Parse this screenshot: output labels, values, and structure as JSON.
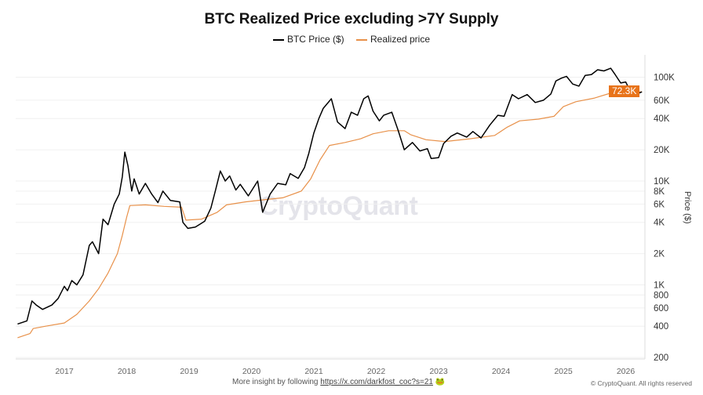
{
  "chart_data": {
    "type": "line",
    "title": "BTC Realized Price excluding >7Y Supply",
    "ylabel": "Price ($)",
    "yscale": "log",
    "ylim": [
      200,
      150000
    ],
    "xlim": [
      2016.2,
      2026.35
    ],
    "grid": true,
    "legend_position": "top",
    "x_ticks": [
      "2017",
      "2018",
      "2019",
      "2020",
      "2021",
      "2022",
      "2023",
      "2024",
      "2025",
      "2026"
    ],
    "y_ticks": [
      {
        "v": 200,
        "label": "200"
      },
      {
        "v": 400,
        "label": "400"
      },
      {
        "v": 600,
        "label": "600"
      },
      {
        "v": 800,
        "label": "800"
      },
      {
        "v": 1000,
        "label": "1K"
      },
      {
        "v": 2000,
        "label": "2K"
      },
      {
        "v": 4000,
        "label": "4K"
      },
      {
        "v": 6000,
        "label": "6K"
      },
      {
        "v": 8000,
        "label": "8K"
      },
      {
        "v": 10000,
        "label": "10K"
      },
      {
        "v": 20000,
        "label": "20K"
      },
      {
        "v": 40000,
        "label": "40K"
      },
      {
        "v": 60000,
        "label": "60K"
      },
      {
        "v": 100000,
        "label": "100K"
      }
    ],
    "last_value_label": "72.3K",
    "series": [
      {
        "name": "BTC Price ($)",
        "color": "#000000",
        "points": [
          [
            2016.25,
            420
          ],
          [
            2016.4,
            450
          ],
          [
            2016.48,
            700
          ],
          [
            2016.55,
            640
          ],
          [
            2016.65,
            580
          ],
          [
            2016.8,
            640
          ],
          [
            2016.9,
            740
          ],
          [
            2017.0,
            970
          ],
          [
            2017.05,
            880
          ],
          [
            2017.12,
            1100
          ],
          [
            2017.2,
            1000
          ],
          [
            2017.3,
            1250
          ],
          [
            2017.4,
            2400
          ],
          [
            2017.45,
            2600
          ],
          [
            2017.55,
            2000
          ],
          [
            2017.62,
            4300
          ],
          [
            2017.7,
            3800
          ],
          [
            2017.8,
            6000
          ],
          [
            2017.88,
            7500
          ],
          [
            2017.93,
            11000
          ],
          [
            2017.97,
            19000
          ],
          [
            2018.02,
            14000
          ],
          [
            2018.08,
            8000
          ],
          [
            2018.12,
            10500
          ],
          [
            2018.2,
            7500
          ],
          [
            2018.3,
            9500
          ],
          [
            2018.4,
            7500
          ],
          [
            2018.5,
            6200
          ],
          [
            2018.58,
            8000
          ],
          [
            2018.7,
            6500
          ],
          [
            2018.85,
            6300
          ],
          [
            2018.9,
            4000
          ],
          [
            2018.98,
            3500
          ],
          [
            2019.1,
            3600
          ],
          [
            2019.25,
            4100
          ],
          [
            2019.35,
            5500
          ],
          [
            2019.42,
            8000
          ],
          [
            2019.5,
            12500
          ],
          [
            2019.58,
            10000
          ],
          [
            2019.65,
            11200
          ],
          [
            2019.75,
            8200
          ],
          [
            2019.82,
            9300
          ],
          [
            2019.95,
            7200
          ],
          [
            2020.1,
            10000
          ],
          [
            2020.18,
            5000
          ],
          [
            2020.3,
            7500
          ],
          [
            2020.42,
            9500
          ],
          [
            2020.55,
            9200
          ],
          [
            2020.62,
            11800
          ],
          [
            2020.75,
            10600
          ],
          [
            2020.85,
            13500
          ],
          [
            2020.92,
            18500
          ],
          [
            2021.0,
            29000
          ],
          [
            2021.08,
            40000
          ],
          [
            2021.15,
            50000
          ],
          [
            2021.28,
            62000
          ],
          [
            2021.38,
            37000
          ],
          [
            2021.5,
            32000
          ],
          [
            2021.6,
            46000
          ],
          [
            2021.7,
            43000
          ],
          [
            2021.8,
            62000
          ],
          [
            2021.87,
            66000
          ],
          [
            2021.95,
            47000
          ],
          [
            2022.05,
            38000
          ],
          [
            2022.12,
            43000
          ],
          [
            2022.25,
            46000
          ],
          [
            2022.35,
            31000
          ],
          [
            2022.45,
            20000
          ],
          [
            2022.58,
            23500
          ],
          [
            2022.7,
            19500
          ],
          [
            2022.82,
            20500
          ],
          [
            2022.88,
            16500
          ],
          [
            2023.0,
            16800
          ],
          [
            2023.08,
            23000
          ],
          [
            2023.2,
            27000
          ],
          [
            2023.3,
            29000
          ],
          [
            2023.45,
            26500
          ],
          [
            2023.55,
            30000
          ],
          [
            2023.68,
            26000
          ],
          [
            2023.82,
            34500
          ],
          [
            2023.95,
            43000
          ],
          [
            2024.05,
            42000
          ],
          [
            2024.18,
            68000
          ],
          [
            2024.28,
            62000
          ],
          [
            2024.42,
            68000
          ],
          [
            2024.55,
            57000
          ],
          [
            2024.68,
            60000
          ],
          [
            2024.8,
            69000
          ],
          [
            2024.88,
            92000
          ],
          [
            2024.97,
            98000
          ],
          [
            2025.05,
            102000
          ],
          [
            2025.15,
            86000
          ],
          [
            2025.25,
            82000
          ],
          [
            2025.35,
            104000
          ],
          [
            2025.45,
            106000
          ],
          [
            2025.55,
            118000
          ],
          [
            2025.65,
            115000
          ],
          [
            2025.76,
            122000
          ],
          [
            2025.83,
            106000
          ],
          [
            2025.92,
            88000
          ],
          [
            2026.0,
            90000
          ],
          [
            2026.06,
            76000
          ],
          [
            2026.1,
            66000
          ],
          [
            2026.18,
            69000
          ],
          [
            2026.26,
            72300
          ]
        ]
      },
      {
        "name": "Realized price",
        "color": "#e8914a",
        "points": [
          [
            2016.25,
            310
          ],
          [
            2016.45,
            340
          ],
          [
            2016.5,
            380
          ],
          [
            2016.7,
            400
          ],
          [
            2017.0,
            430
          ],
          [
            2017.2,
            520
          ],
          [
            2017.4,
            700
          ],
          [
            2017.55,
            920
          ],
          [
            2017.7,
            1300
          ],
          [
            2017.85,
            2000
          ],
          [
            2017.93,
            3000
          ],
          [
            2018.0,
            4500
          ],
          [
            2018.05,
            5800
          ],
          [
            2018.3,
            5900
          ],
          [
            2018.6,
            5700
          ],
          [
            2018.88,
            5600
          ],
          [
            2018.95,
            4200
          ],
          [
            2019.2,
            4300
          ],
          [
            2019.45,
            5000
          ],
          [
            2019.6,
            5900
          ],
          [
            2019.9,
            6300
          ],
          [
            2020.2,
            6600
          ],
          [
            2020.5,
            6900
          ],
          [
            2020.8,
            8000
          ],
          [
            2020.95,
            10500
          ],
          [
            2021.1,
            16000
          ],
          [
            2021.25,
            22000
          ],
          [
            2021.5,
            23500
          ],
          [
            2021.75,
            25500
          ],
          [
            2021.95,
            28500
          ],
          [
            2022.2,
            30500
          ],
          [
            2022.45,
            30500
          ],
          [
            2022.55,
            28000
          ],
          [
            2022.8,
            25000
          ],
          [
            2023.1,
            24000
          ],
          [
            2023.5,
            25500
          ],
          [
            2023.9,
            27500
          ],
          [
            2024.1,
            33000
          ],
          [
            2024.3,
            38000
          ],
          [
            2024.6,
            39500
          ],
          [
            2024.85,
            42000
          ],
          [
            2025.0,
            52000
          ],
          [
            2025.2,
            58000
          ],
          [
            2025.5,
            63000
          ],
          [
            2025.75,
            70000
          ],
          [
            2026.0,
            72500
          ],
          [
            2026.26,
            72300
          ]
        ]
      }
    ]
  },
  "watermark": "CryptoQuant",
  "footer": {
    "text": "More insight by following ",
    "link": "https://x.com/darkfost_coc?s=21",
    "copyright": "© CryptoQuant. All rights reserved"
  }
}
